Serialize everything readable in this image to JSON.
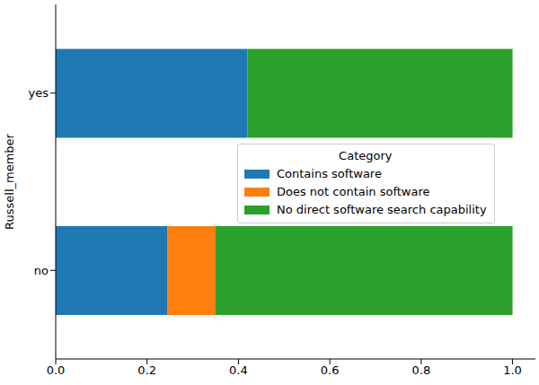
{
  "chart_data": {
    "type": "bar",
    "orientation": "horizontal",
    "stacked": true,
    "categories": [
      "no",
      "yes"
    ],
    "series": [
      {
        "name": "Contains software",
        "color": "#1f77b4",
        "values": [
          0.245,
          0.42
        ]
      },
      {
        "name": "Does not contain software",
        "color": "#ff7f0e",
        "values": [
          0.105,
          0
        ]
      },
      {
        "name": "No direct software search capability",
        "color": "#2ca02c",
        "values": [
          0.65,
          0.58
        ]
      }
    ],
    "y_label": "Russell_member",
    "legend_title": "Category",
    "legend": "right",
    "xlim": [
      0,
      1.05
    ],
    "xticks": [
      {
        "value": 0,
        "label": "0.0"
      },
      {
        "value": 0.2,
        "label": "0.2"
      },
      {
        "value": 0.4,
        "label": "0.4"
      },
      {
        "value": 0.6,
        "label": "0.6"
      },
      {
        "value": 0.8,
        "label": "0.8"
      },
      {
        "value": 1,
        "label": "1.0"
      }
    ]
  }
}
